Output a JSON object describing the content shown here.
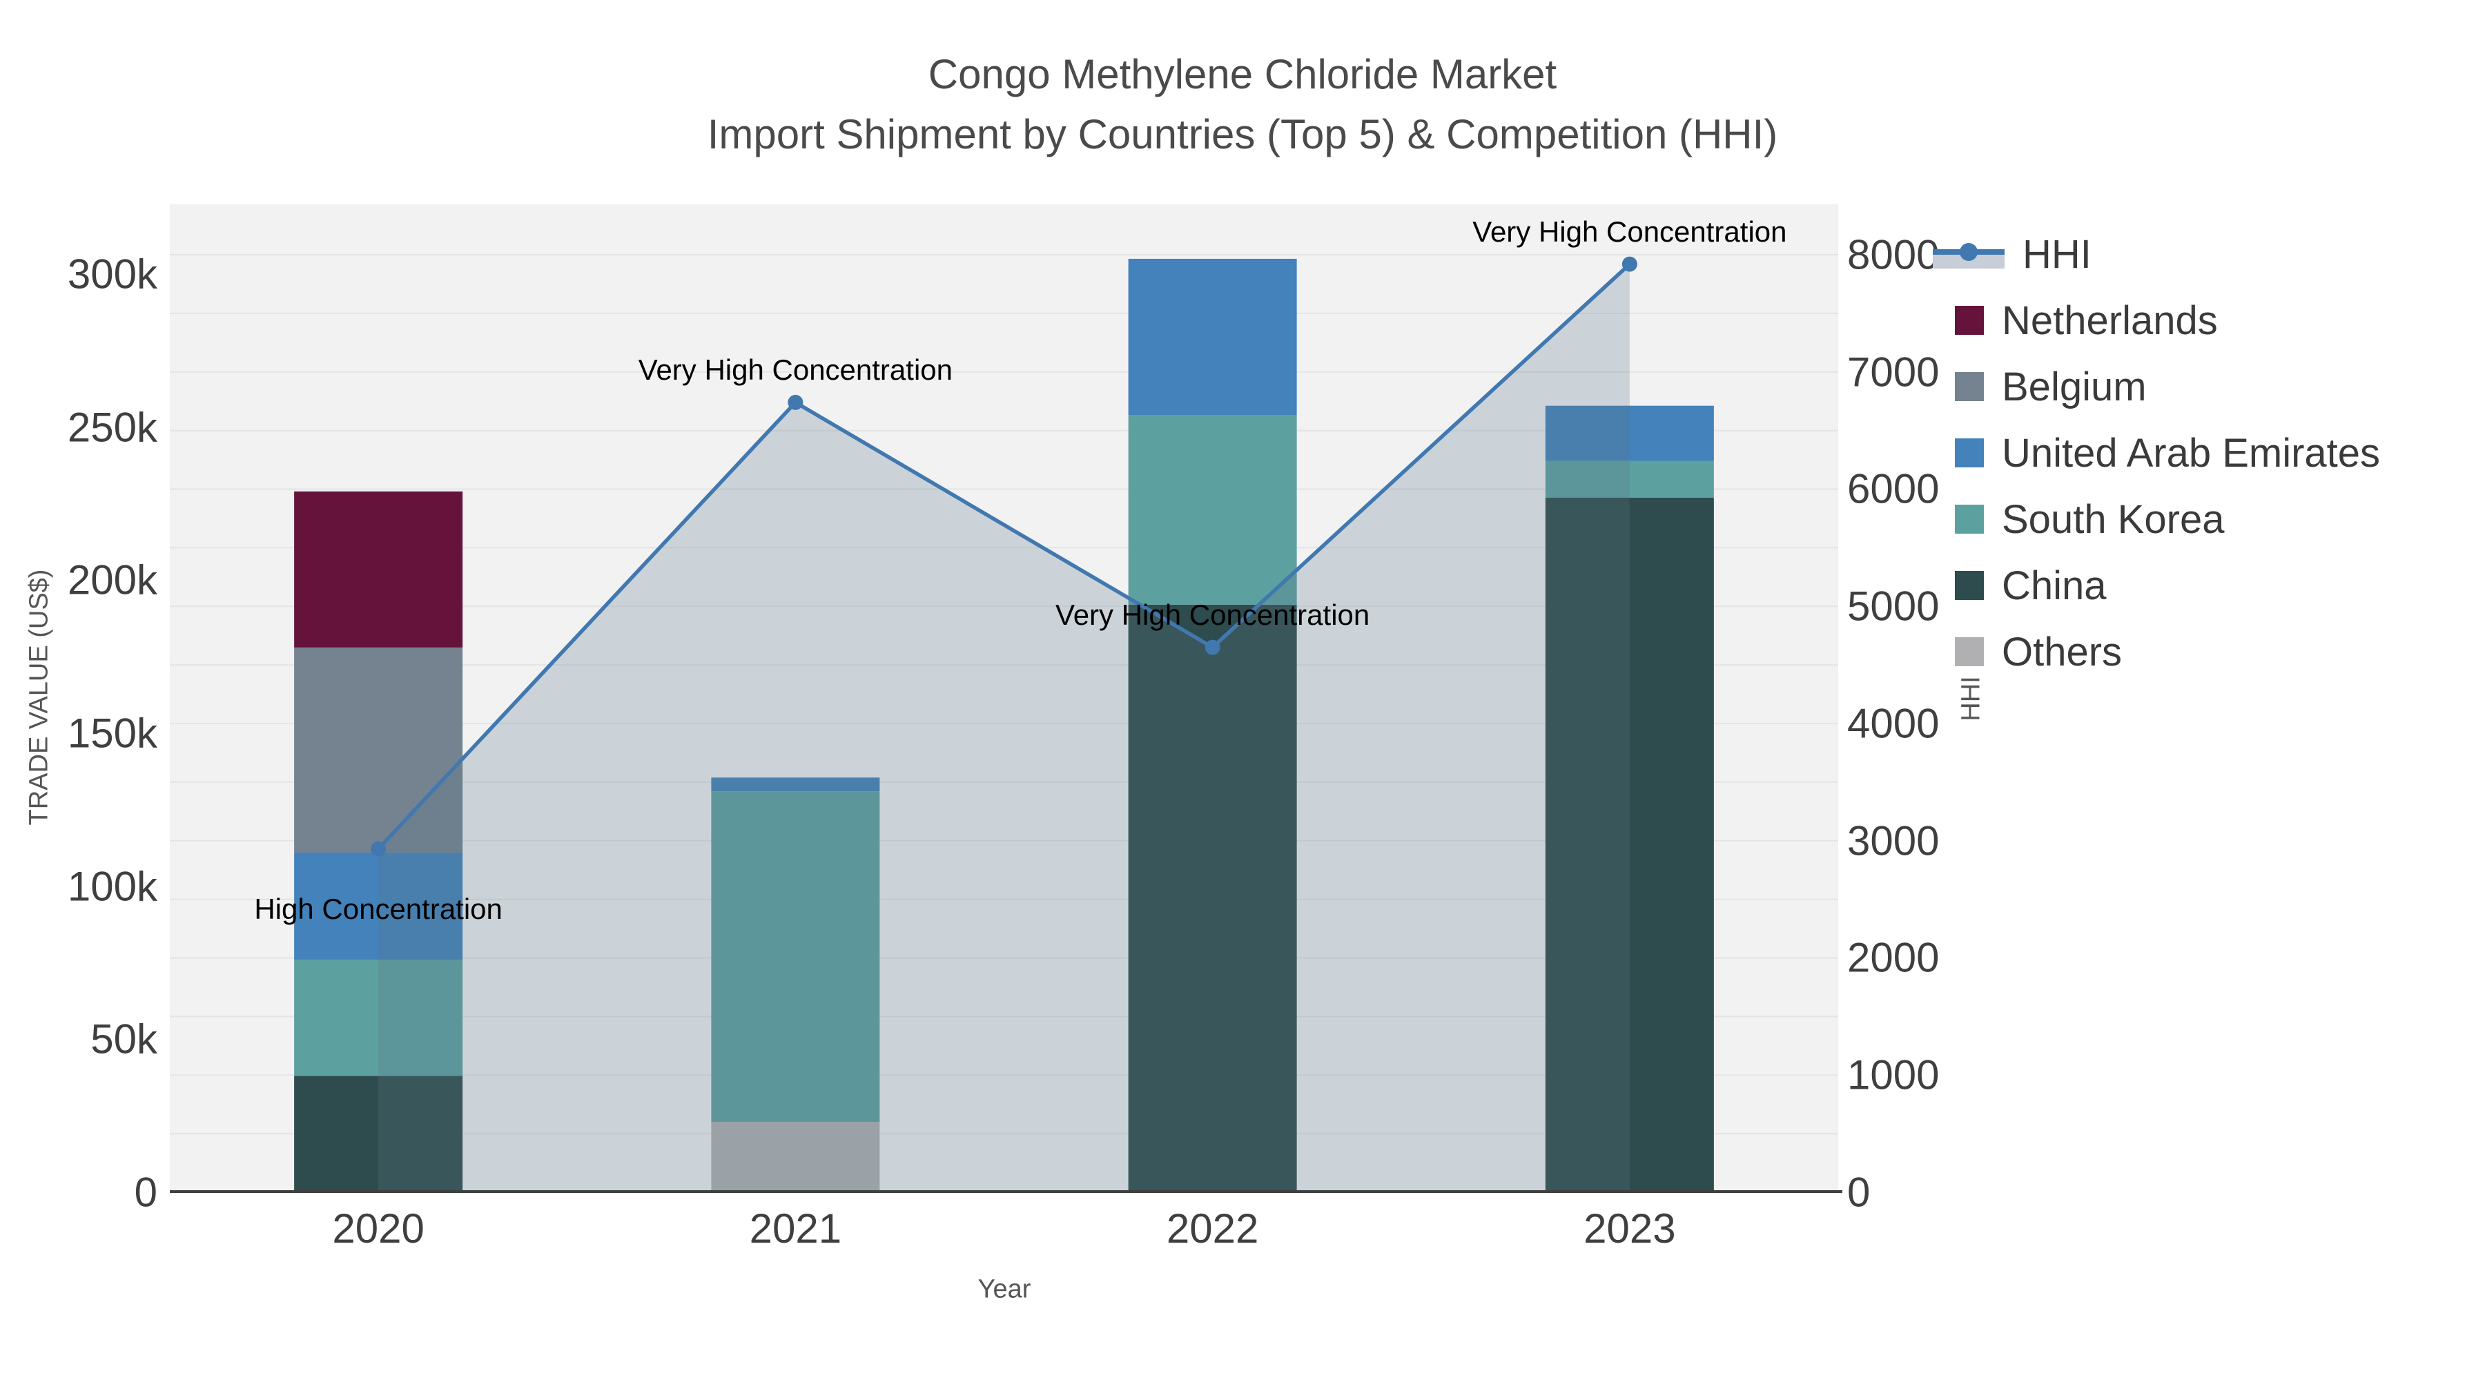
{
  "title": {
    "line1": "Congo Methylene Chloride Market",
    "line2": "Import Shipment by Countries (Top 5) & Competition (HHI)"
  },
  "axes": {
    "x_title": "Year",
    "y_left_title": "TRADE VALUE (US$)",
    "y_right_title": "HHI",
    "y_left_ticks": [
      {
        "label": "0",
        "value": 0
      },
      {
        "label": "50k",
        "value": 50000
      },
      {
        "label": "100k",
        "value": 100000
      },
      {
        "label": "150k",
        "value": 150000
      },
      {
        "label": "200k",
        "value": 200000
      },
      {
        "label": "250k",
        "value": 250000
      },
      {
        "label": "300k",
        "value": 300000
      }
    ],
    "y_right_ticks": [
      {
        "label": "0",
        "value": 0
      },
      {
        "label": "1000",
        "value": 1000
      },
      {
        "label": "2000",
        "value": 2000
      },
      {
        "label": "3000",
        "value": 3000
      },
      {
        "label": "4000",
        "value": 4000
      },
      {
        "label": "5000",
        "value": 5000
      },
      {
        "label": "6000",
        "value": 6000
      },
      {
        "label": "7000",
        "value": 7000
      },
      {
        "label": "8000",
        "value": 8000
      }
    ],
    "y_left_max": 322800,
    "y_right_max": 8430,
    "gridline_step_hhi": 500
  },
  "colors": {
    "plot_bg": "#f2f2f3",
    "gridline": "#e3e4e6",
    "axis_line": "#3f3f3f",
    "hhi_line": "#4178b0",
    "hhi_fill": "rgba(90,119,137,0.25)",
    "legend_band": "#c7ced8"
  },
  "chart_data": {
    "type": "bar+line",
    "categories": [
      "2020",
      "2021",
      "2022",
      "2023"
    ],
    "bar_stack_order_bottom_to_top": [
      "Others",
      "China",
      "South Korea",
      "United Arab Emirates",
      "Belgium",
      "Netherlands"
    ],
    "series": [
      {
        "name": "Others",
        "color": "#b0b0b2",
        "values": [
          0,
          23000,
          0,
          0
        ]
      },
      {
        "name": "China",
        "color": "#2e4b4d",
        "values": [
          38000,
          0,
          192000,
          227000
        ]
      },
      {
        "name": "South Korea",
        "color": "#5da0a0",
        "values": [
          38000,
          108000,
          62000,
          12000
        ]
      },
      {
        "name": "United Arab Emirates",
        "color": "#4382ba",
        "values": [
          35000,
          4500,
          51000,
          18000
        ]
      },
      {
        "name": "Belgium",
        "color": "#75828f",
        "values": [
          67000,
          0,
          0,
          0
        ]
      },
      {
        "name": "Netherlands",
        "color": "#65133b",
        "values": [
          51000,
          0,
          0,
          0
        ]
      }
    ],
    "hhi_series": {
      "name": "HHI",
      "values": [
        2930,
        6740,
        4650,
        7920
      ]
    },
    "annotations": [
      {
        "category": "2020",
        "text": "High Concentration",
        "placement": "below"
      },
      {
        "category": "2021",
        "text": "Very High Concentration",
        "placement": "above"
      },
      {
        "category": "2022",
        "text": "Very High Concentration",
        "placement": "above"
      },
      {
        "category": "2023",
        "text": "Very High Concentration",
        "placement": "above"
      }
    ],
    "legend": [
      {
        "label": "HHI",
        "type": "line"
      },
      {
        "label": "Netherlands",
        "type": "swatch",
        "color": "#65133b"
      },
      {
        "label": "Belgium",
        "type": "swatch",
        "color": "#75828f"
      },
      {
        "label": "United Arab Emirates",
        "type": "swatch",
        "color": "#4382ba"
      },
      {
        "label": "South Korea",
        "type": "swatch",
        "color": "#5da0a0"
      },
      {
        "label": "China",
        "type": "swatch",
        "color": "#2e4b4d"
      },
      {
        "label": "Others",
        "type": "swatch",
        "color": "#b0b0b2"
      }
    ]
  }
}
